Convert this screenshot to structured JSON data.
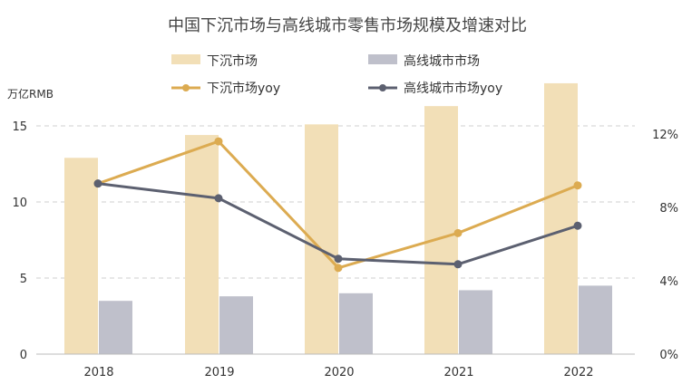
{
  "chart_data": {
    "type": "bar",
    "title": "中国下沉市场与高线城市零售市场规模及增速对比",
    "categories": [
      "2018",
      "2019",
      "2020",
      "2021",
      "2022"
    ],
    "ylabel": "万亿RMB",
    "ylim": [
      0,
      18
    ],
    "y_ticks": [
      "0",
      "5",
      "10",
      "15"
    ],
    "y2lim": [
      0,
      15
    ],
    "y2_ticks": [
      "0%",
      "4%",
      "8%",
      "12%"
    ],
    "series": [
      {
        "name": "下沉市场",
        "kind": "bar",
        "color": "#f2dfb7",
        "values": [
          12.9,
          14.4,
          15.1,
          16.3,
          17.8
        ]
      },
      {
        "name": "高线城市市场",
        "kind": "bar",
        "color": "#bfc0cb",
        "values": [
          3.5,
          3.8,
          4.0,
          4.2,
          4.5
        ]
      },
      {
        "name": "下沉市场yoy",
        "kind": "line",
        "axis": "right",
        "color": "#dcab51",
        "values": [
          9.3,
          11.6,
          4.7,
          6.6,
          9.2
        ]
      },
      {
        "name": "高线城市市场yoy",
        "kind": "line",
        "axis": "right",
        "color": "#5c6070",
        "values": [
          9.3,
          8.5,
          5.2,
          4.9,
          7.0
        ]
      }
    ]
  }
}
